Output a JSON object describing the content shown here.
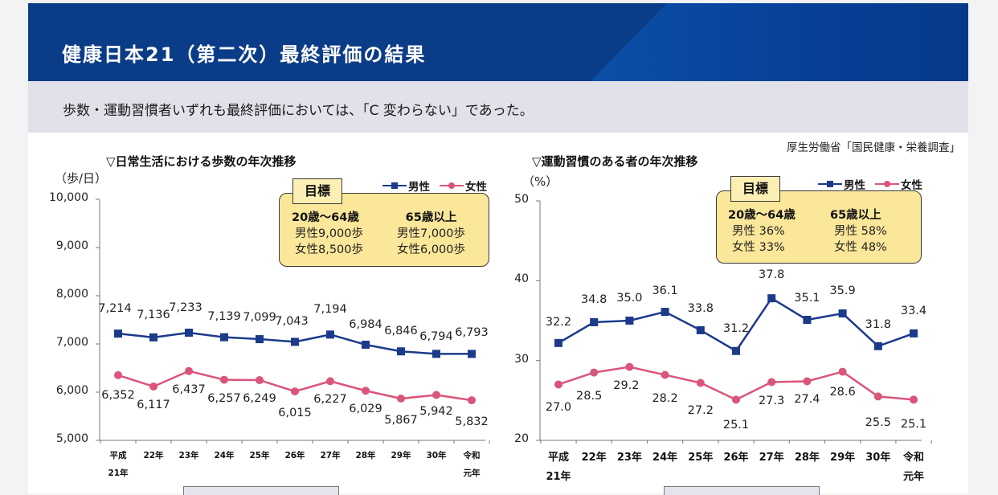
{
  "header": {
    "title": "健康日本21（第二次）最終評価の結果",
    "summary": "歩数・運動習慣者いずれも最終評価においては、「C 変わらない」であった。",
    "source": "厚生労働省「国民健康・栄養調査」"
  },
  "colors": {
    "banner": "#0b3c87",
    "male": "#1b3a8a",
    "female": "#d9557a",
    "goal_box": "#fbe79a"
  },
  "legend": {
    "male": "男性",
    "female": "女性"
  },
  "goal_labels": {
    "tab": "目標",
    "young_header": "20歳～64歳",
    "old_header": "65歳以上"
  },
  "x_labels": [
    [
      "平成",
      "21年"
    ],
    [
      "22年"
    ],
    [
      "23年"
    ],
    [
      "24年"
    ],
    [
      "25年"
    ],
    [
      "26年"
    ],
    [
      "27年"
    ],
    [
      "28年"
    ],
    [
      "29年"
    ],
    [
      "30年"
    ],
    [
      "令和",
      "元年"
    ]
  ],
  "chart_data": [
    {
      "type": "line",
      "title": "▽日常生活における歩数の年次推移",
      "ylabel": "（歩/日）",
      "xlabel": "",
      "categories": [
        "平成21年",
        "22年",
        "23年",
        "24年",
        "25年",
        "26年",
        "27年",
        "28年",
        "29年",
        "30年",
        "令和元年"
      ],
      "ylim": [
        5000,
        10000
      ],
      "yticks": [
        5000,
        6000,
        7000,
        8000,
        9000,
        10000
      ],
      "ytick_labels": [
        "5,000",
        "6,000",
        "7,000",
        "8,000",
        "9,000",
        "10,000"
      ],
      "grid": false,
      "legend_position": "top-right",
      "series": [
        {
          "name": "男性",
          "marker": "square",
          "values": [
            7214,
            7136,
            7233,
            7139,
            7099,
            7043,
            7194,
            6984,
            6846,
            6794,
            6793
          ],
          "labels": [
            "7,214",
            "7,136",
            "7,233",
            "7,139",
            "7,099",
            "7,043",
            "7,194",
            "6,984",
            "6,846",
            "6,794",
            "6,793"
          ]
        },
        {
          "name": "女性",
          "marker": "circle",
          "values": [
            6352,
            6117,
            6437,
            6257,
            6249,
            6015,
            6227,
            6029,
            5867,
            5942,
            5832
          ],
          "labels": [
            "6,352",
            "6,117",
            "6,437",
            "6,257",
            "6,249",
            "6,015",
            "6,227",
            "6,029",
            "5,867",
            "5,942",
            "5,832"
          ]
        }
      ],
      "goals": {
        "young": [
          "男性9,000歩",
          "女性8,500歩"
        ],
        "old": [
          "男性7,000歩",
          "女性6,000歩"
        ]
      }
    },
    {
      "type": "line",
      "title": "▽運動習慣のある者の年次推移",
      "ylabel": "（%）",
      "xlabel": "",
      "categories": [
        "平成21年",
        "22年",
        "23年",
        "24年",
        "25年",
        "26年",
        "27年",
        "28年",
        "29年",
        "30年",
        "令和元年"
      ],
      "ylim": [
        20,
        50
      ],
      "yticks": [
        20,
        30,
        40,
        50
      ],
      "ytick_labels": [
        "20",
        "30",
        "40",
        "50"
      ],
      "grid": false,
      "legend_position": "top-right",
      "series": [
        {
          "name": "男性",
          "marker": "square",
          "values": [
            32.2,
            34.8,
            35.0,
            36.1,
            33.8,
            31.2,
            37.8,
            35.1,
            35.9,
            31.8,
            33.4
          ],
          "labels": [
            "32.2",
            "34.8",
            "35.0",
            "36.1",
            "33.8",
            "31.2",
            "37.8",
            "35.1",
            "35.9",
            "31.8",
            "33.4"
          ]
        },
        {
          "name": "女性",
          "marker": "circle",
          "values": [
            27.0,
            28.5,
            29.2,
            28.2,
            27.2,
            25.1,
            27.3,
            27.4,
            28.6,
            25.5,
            25.1
          ],
          "labels": [
            "27.0",
            "28.5",
            "29.2",
            "28.2",
            "27.2",
            "25.1",
            "27.3",
            "27.4",
            "28.6",
            "25.5",
            "25.1"
          ]
        }
      ],
      "goals": {
        "young": [
          "男性 36%",
          "女性 33%"
        ],
        "old": [
          "男性 58%",
          "女性 48%"
        ]
      }
    }
  ]
}
